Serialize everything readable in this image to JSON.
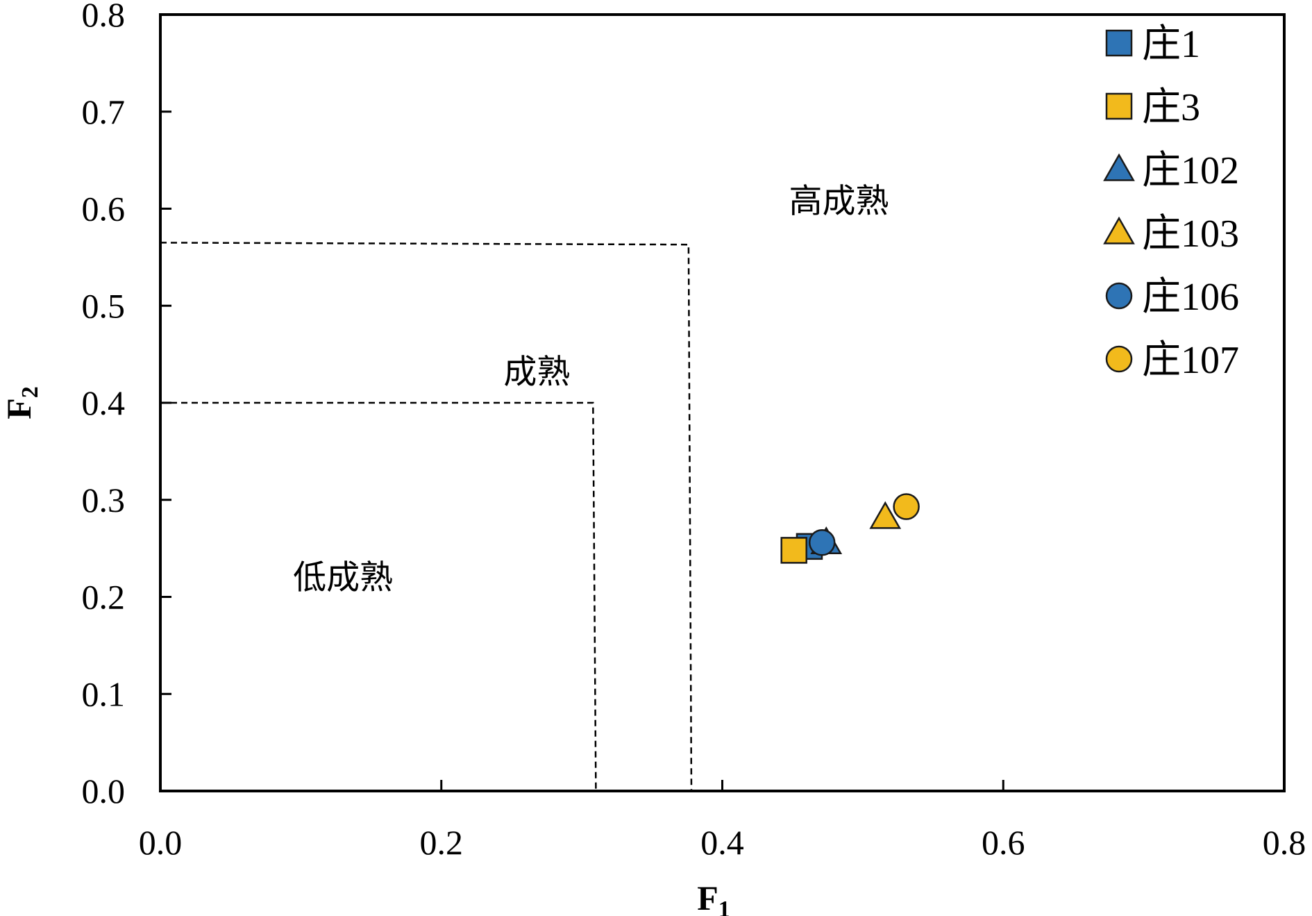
{
  "chart_data": {
    "type": "scatter",
    "title": "",
    "xlabel": {
      "main": "F",
      "sub": "1"
    },
    "ylabel": {
      "main": "F",
      "sub": "2"
    },
    "xlim": [
      0,
      0.8
    ],
    "ylim": [
      0,
      0.8
    ],
    "x_ticks": [
      "0.0",
      "0.2",
      "0.4",
      "0.6",
      "0.8"
    ],
    "y_ticks": [
      "0.0",
      "0.1",
      "0.2",
      "0.3",
      "0.4",
      "0.5",
      "0.6",
      "0.7",
      "0.8"
    ],
    "grid": false,
    "legend_position": "top-right",
    "series": [
      {
        "name": "庄1",
        "marker": "square",
        "color": "#2e74b5",
        "points": [
          {
            "x": 0.462,
            "y": 0.252
          }
        ]
      },
      {
        "name": "庄3",
        "marker": "square",
        "color": "#f2ba1c",
        "points": [
          {
            "x": 0.451,
            "y": 0.248
          }
        ]
      },
      {
        "name": "庄102",
        "marker": "triangle",
        "color": "#2e74b5",
        "points": [
          {
            "x": 0.474,
            "y": 0.256
          }
        ]
      },
      {
        "name": "庄103",
        "marker": "triangle",
        "color": "#f2ba1c",
        "points": [
          {
            "x": 0.516,
            "y": 0.282
          }
        ]
      },
      {
        "name": "庄106",
        "marker": "circle",
        "color": "#2e74b5",
        "points": [
          {
            "x": 0.471,
            "y": 0.256
          }
        ]
      },
      {
        "name": "庄107",
        "marker": "circle",
        "color": "#f2ba1c",
        "points": [
          {
            "x": 0.531,
            "y": 0.293
          }
        ]
      }
    ],
    "boundaries": [
      {
        "name": "low-mature-boundary",
        "points": [
          {
            "x": 0.0,
            "y": 0.4
          },
          {
            "x": 0.308,
            "y": 0.4
          },
          {
            "x": 0.31,
            "y": 0.0
          }
        ]
      },
      {
        "name": "mature-boundary",
        "points": [
          {
            "x": 0.0,
            "y": 0.565
          },
          {
            "x": 0.376,
            "y": 0.563
          },
          {
            "x": 0.378,
            "y": 0.0
          }
        ]
      }
    ],
    "annotations": [
      {
        "text": "低成熟",
        "x": 0.13,
        "y": 0.22
      },
      {
        "text": "成熟",
        "x": 0.268,
        "y": 0.432
      },
      {
        "text": "高成熟",
        "x": 0.483,
        "y": 0.608
      }
    ]
  }
}
